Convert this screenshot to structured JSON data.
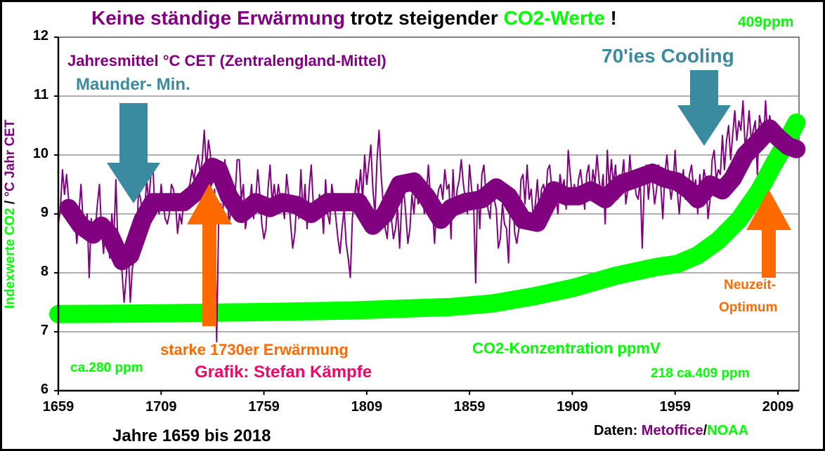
{
  "title": {
    "part1": "Keine ständige Erwärmung",
    "part2": "trotz steigender",
    "part3": "CO2-Werte",
    "part4": "!",
    "ppm_badge": "409ppm"
  },
  "annotations": {
    "series_label": "Jahresmittel °C CET (Zentralengland-Mittel)",
    "maunder": "Maunder- Min.",
    "cooling": "70'ies Cooling",
    "warming_1730": "starke 1730er Erwärmung",
    "author": "Grafik: Stefan Kämpfe",
    "co2_label": "CO2-Konzentration ppmV",
    "ppm_start": "ca.280 ppm",
    "ppm_end": "218 ca.409 ppm",
    "neuzeit1": "Neuzeit-",
    "neuzeit2": "Optimum",
    "xlabel": "Jahre 1659 bis 2018",
    "source_prefix": "Daten:",
    "source_metoffice": "Metoffice",
    "source_sep": "/",
    "source_noaa": "NOAA",
    "ylabel_co2": "Indexwerte CO2",
    "ylabel_sep": " / ",
    "ylabel_cet": "°C Jahr CET"
  },
  "colors": {
    "cet": "#800080",
    "co2": "#00ff00",
    "arrow_blue": "#3a8ba0",
    "arrow_orange": "#ff6a00",
    "author": "#ff0066",
    "grid": "#808080"
  },
  "chart_data": {
    "type": "line",
    "title": "Keine ständige Erwärmung trotz steigender CO2-Werte ! 409ppm",
    "xlabel": "Jahre 1659 bis 2018",
    "ylabel": "Indexwerte CO2 / °C Jahr CET",
    "xlim": [
      1659,
      2019
    ],
    "ylim": [
      6,
      12
    ],
    "x_ticks": [
      1659,
      1709,
      1759,
      1809,
      1859,
      1909,
      1959,
      2009
    ],
    "y_ticks": [
      6,
      7,
      8,
      9,
      10,
      11,
      12
    ],
    "grid": true,
    "series": [
      {
        "name": "Jahresmittel °C CET (annual)",
        "style": "thin",
        "x_start": 1659,
        "values": [
          8.83,
          9.08,
          9.75,
          9.33,
          9.67,
          9.25,
          9.08,
          8.92,
          8.92,
          8.5,
          9.0,
          9.5,
          8.92,
          8.67,
          9.0,
          7.92,
          8.92,
          8.67,
          8.75,
          9.17,
          9.5,
          8.75,
          8.33,
          8.92,
          8.75,
          8.25,
          9.0,
          8.58,
          9.58,
          8.42,
          8.33,
          8.0,
          7.5,
          7.92,
          8.42,
          7.5,
          8.08,
          8.25,
          8.42,
          9.42,
          9.25,
          9.0,
          9.08,
          9.58,
          9.17,
          9.67,
          9.83,
          9.0,
          9.33,
          9.0,
          9.5,
          9.17,
          8.92,
          8.83,
          9.0,
          9.5,
          9.42,
          9.17,
          8.67,
          9.0,
          8.83,
          9.25,
          9.33,
          9.42,
          9.5,
          9.75,
          9.58,
          9.83,
          10.0,
          9.67,
          9.92,
          10.42,
          9.75,
          10.25,
          10.0,
          7.92,
          9.42,
          6.83,
          8.92,
          9.17,
          9.0,
          9.92,
          9.5,
          8.83,
          9.08,
          9.17,
          9.33,
          9.92,
          9.92,
          9.25,
          9.5,
          8.75,
          9.0,
          9.17,
          9.5,
          8.92,
          9.25,
          9.75,
          9.33,
          8.83,
          8.58,
          8.75,
          9.42,
          9.83,
          9.17,
          9.5,
          9.17,
          9.5,
          9.25,
          9.17,
          8.92,
          9.67,
          9.33,
          8.83,
          8.42,
          8.67,
          9.25,
          8.92,
          9.75,
          9.0,
          9.5,
          8.75,
          9.42,
          9.83,
          9.17,
          9.08,
          8.92,
          9.33,
          9.17,
          8.67,
          9.58,
          9.0,
          8.83,
          9.5,
          9.25,
          8.92,
          8.58,
          8.33,
          8.75,
          9.08,
          8.5,
          8.25,
          7.92,
          8.92,
          9.25,
          9.58,
          9.33,
          9.75,
          9.25,
          10.0,
          9.5,
          9.83,
          10.17,
          9.42,
          9.0,
          9.92,
          10.42,
          9.67,
          9.17,
          8.75,
          8.58,
          9.25,
          8.92,
          8.58,
          8.75,
          9.08,
          8.42,
          9.17,
          9.42,
          9.0,
          8.5,
          8.75,
          9.33,
          9.0,
          9.58,
          9.17,
          9.25,
          9.5,
          9.0,
          9.33,
          9.83,
          9.25,
          9.08,
          8.5,
          9.17,
          9.42,
          9.5,
          9.25,
          9.75,
          9.42,
          9.5,
          8.58,
          9.75,
          9.0,
          9.42,
          9.58,
          9.92,
          9.5,
          9.25,
          9.0,
          9.83,
          9.42,
          9.17,
          7.83,
          9.5,
          8.75,
          9.67,
          9.83,
          9.33,
          9.08,
          8.92,
          9.5,
          9.25,
          9.08,
          8.42,
          8.58,
          9.17,
          8.83,
          8.75,
          8.17,
          9.42,
          9.25,
          8.67,
          8.5,
          8.75,
          9.58,
          9.67,
          9.17,
          9.83,
          9.25,
          9.42,
          8.92,
          9.17,
          9.58,
          9.0,
          9.42,
          9.5,
          9.25,
          9.75,
          9.83,
          9.42,
          9.25,
          9.33,
          9.0,
          9.67,
          9.42,
          9.58,
          9.08,
          10.08,
          9.67,
          9.25,
          9.5,
          9.17,
          9.58,
          9.75,
          9.42,
          9.08,
          9.67,
          9.83,
          9.25,
          9.75,
          9.5,
          10.0,
          9.58,
          9.33,
          9.67,
          8.83,
          10.08,
          9.42,
          9.92,
          9.5,
          9.83,
          9.25,
          9.67,
          9.58,
          9.92,
          9.17,
          9.42,
          10.0,
          9.5,
          9.67,
          9.33,
          9.25,
          9.58,
          8.42,
          9.5,
          9.83,
          9.25,
          9.67,
          9.58,
          9.17,
          9.42,
          9.83,
          9.5,
          8.92,
          9.67,
          10.0,
          9.58,
          9.25,
          9.5,
          10.08,
          9.42,
          9.0,
          9.5,
          9.75,
          9.25,
          9.33,
          9.67,
          9.83,
          9.42,
          9.58,
          9.0,
          9.67,
          9.33,
          9.75,
          9.58,
          8.92,
          9.25,
          9.92,
          10.08,
          9.58,
          9.75,
          9.67,
          10.33,
          9.75,
          10.25,
          10.5,
          9.92,
          10.33,
          10.75,
          10.25,
          10.58,
          10.42,
          10.92,
          10.17,
          10.33,
          10.75,
          10.25,
          10.42,
          10.58,
          9.67,
          10.67,
          10.5,
          10.17,
          10.92,
          10.33,
          10.67,
          10.42
        ],
        "color": "#800080"
      },
      {
        "name": "Jahresmittel °C CET (smoothed)",
        "style": "thick",
        "x": [
          1664,
          1670,
          1676,
          1680,
          1684,
          1690,
          1694,
          1700,
          1705,
          1712,
          1720,
          1727,
          1734,
          1737,
          1742,
          1748,
          1755,
          1762,
          1768,
          1775,
          1782,
          1790,
          1797,
          1805,
          1812,
          1818,
          1825,
          1832,
          1838,
          1845,
          1850,
          1857,
          1865,
          1872,
          1878,
          1885,
          1892,
          1900,
          1906,
          1912,
          1918,
          1925,
          1932,
          1940,
          1948,
          1954,
          1960,
          1966,
          1970,
          1976,
          1982,
          1987,
          1993,
          2000,
          2005,
          2009,
          2014,
          2018
        ],
        "values": [
          9.1,
          8.8,
          8.65,
          8.8,
          8.65,
          8.2,
          8.3,
          8.9,
          9.2,
          9.2,
          9.2,
          9.4,
          9.8,
          9.75,
          9.3,
          9.0,
          9.2,
          9.1,
          9.2,
          9.15,
          9.0,
          9.2,
          9.2,
          9.2,
          8.8,
          9.0,
          9.5,
          9.55,
          9.3,
          8.9,
          9.1,
          9.2,
          9.25,
          9.45,
          9.3,
          8.9,
          8.85,
          9.4,
          9.3,
          9.3,
          9.4,
          9.25,
          9.5,
          9.6,
          9.7,
          9.6,
          9.55,
          9.4,
          9.25,
          9.5,
          9.4,
          9.6,
          10.0,
          10.25,
          10.45,
          10.3,
          10.15,
          10.1
        ],
        "color": "#800080"
      },
      {
        "name": "CO2-Konzentration ppmV (Index)",
        "style": "thick",
        "x": [
          1659,
          1700,
          1750,
          1800,
          1850,
          1870,
          1890,
          1910,
          1930,
          1950,
          1960,
          1970,
          1980,
          1990,
          2000,
          2007,
          2012,
          2018
        ],
        "values": [
          7.3,
          7.31,
          7.33,
          7.36,
          7.42,
          7.48,
          7.6,
          7.75,
          7.95,
          8.1,
          8.15,
          8.3,
          8.55,
          8.9,
          9.4,
          9.85,
          10.15,
          10.55
        ],
        "color": "#00ff00"
      }
    ],
    "annotations_arrows": [
      {
        "label": "Maunder- Min.",
        "direction": "down",
        "year": 1700,
        "color": "#3a8ba0"
      },
      {
        "label": "starke 1730er Erwärmung",
        "direction": "up",
        "year": 1731,
        "color": "#ff6a00"
      },
      {
        "label": "70'ies Cooling",
        "direction": "down",
        "year": 1974,
        "color": "#3a8ba0"
      },
      {
        "label": "Neuzeit-Optimum",
        "direction": "up",
        "year": 2000,
        "color": "#ff6a00"
      }
    ]
  }
}
